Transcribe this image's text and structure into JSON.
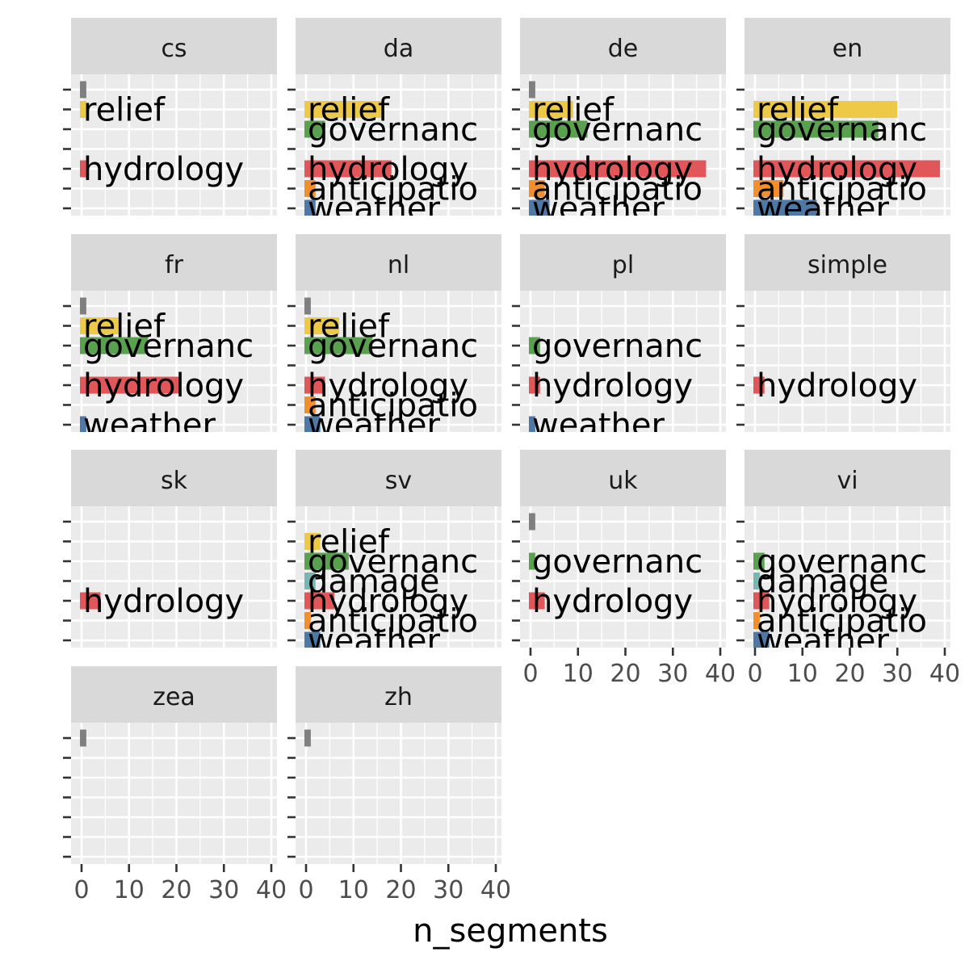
{
  "chart_data": {
    "type": "bar",
    "orientation": "horizontal",
    "facet_by": "language",
    "x_axis_title": "n_segments",
    "xlim": [
      0,
      40
    ],
    "x_ticks": [
      0,
      10,
      20,
      30,
      40
    ],
    "category_order": [
      "weather",
      "anticipatio",
      "hydrology",
      "damage",
      "governanc",
      "relief",
      ""
    ],
    "category_colors": {
      "relief": "#EDC948",
      "governanc": "#59A14F",
      "damage": "#76B7B2",
      "hydrology": "#E15759",
      "anticipatio": "#F28E2B",
      "weather": "#4E79A7",
      "": "#7F7F7F"
    },
    "panel_background": "#EBEBEB",
    "strip_background": "#D9D9D9",
    "grid_color": "#FFFFFF",
    "facets": [
      {
        "label": "cs",
        "bars": [
          {
            "category": "",
            "value": 1
          },
          {
            "category": "relief",
            "value": 1
          },
          {
            "category": "hydrology",
            "value": 1
          }
        ]
      },
      {
        "label": "da",
        "bars": [
          {
            "category": "relief",
            "value": 16
          },
          {
            "category": "governanc",
            "value": 4
          },
          {
            "category": "hydrology",
            "value": 18
          },
          {
            "category": "anticipatio",
            "value": 2
          },
          {
            "category": "weather",
            "value": 2
          }
        ]
      },
      {
        "label": "de",
        "bars": [
          {
            "category": "",
            "value": 1
          },
          {
            "category": "relief",
            "value": 9
          },
          {
            "category": "governanc",
            "value": 12
          },
          {
            "category": "hydrology",
            "value": 37
          },
          {
            "category": "anticipatio",
            "value": 3
          },
          {
            "category": "weather",
            "value": 4
          }
        ]
      },
      {
        "label": "en",
        "bars": [
          {
            "category": "relief",
            "value": 30
          },
          {
            "category": "governanc",
            "value": 26
          },
          {
            "category": "hydrology",
            "value": 39
          },
          {
            "category": "anticipatio",
            "value": 6
          },
          {
            "category": "weather",
            "value": 13
          }
        ]
      },
      {
        "label": "fr",
        "bars": [
          {
            "category": "",
            "value": 1
          },
          {
            "category": "relief",
            "value": 8
          },
          {
            "category": "governanc",
            "value": 14
          },
          {
            "category": "hydrology",
            "value": 21
          },
          {
            "category": "weather",
            "value": 1
          }
        ]
      },
      {
        "label": "nl",
        "bars": [
          {
            "category": "",
            "value": 1
          },
          {
            "category": "relief",
            "value": 7
          },
          {
            "category": "governanc",
            "value": 14
          },
          {
            "category": "hydrology",
            "value": 4
          },
          {
            "category": "anticipatio",
            "value": 2
          },
          {
            "category": "weather",
            "value": 3
          }
        ]
      },
      {
        "label": "pl",
        "bars": [
          {
            "category": "governanc",
            "value": 2
          },
          {
            "category": "hydrology",
            "value": 2
          },
          {
            "category": "weather",
            "value": 1
          }
        ]
      },
      {
        "label": "simple",
        "bars": [
          {
            "category": "hydrology",
            "value": 2
          }
        ]
      },
      {
        "label": "sk",
        "bars": [
          {
            "category": "hydrology",
            "value": 4
          }
        ]
      },
      {
        "label": "sv",
        "bars": [
          {
            "category": "relief",
            "value": 3
          },
          {
            "category": "governanc",
            "value": 9
          },
          {
            "category": "damage",
            "value": 2
          },
          {
            "category": "hydrology",
            "value": 6
          },
          {
            "category": "anticipatio",
            "value": 1
          },
          {
            "category": "weather",
            "value": 3
          }
        ]
      },
      {
        "label": "uk",
        "bars": [
          {
            "category": "",
            "value": 1
          },
          {
            "category": "governanc",
            "value": 1
          },
          {
            "category": "hydrology",
            "value": 3
          }
        ]
      },
      {
        "label": "vi",
        "bars": [
          {
            "category": "governanc",
            "value": 2
          },
          {
            "category": "damage",
            "value": 1
          },
          {
            "category": "hydrology",
            "value": 3
          },
          {
            "category": "anticipatio",
            "value": 1
          },
          {
            "category": "weather",
            "value": 3
          }
        ]
      },
      {
        "label": "zea",
        "bars": [
          {
            "category": "",
            "value": 1
          }
        ]
      },
      {
        "label": "zh",
        "bars": [
          {
            "category": "",
            "value": 1
          }
        ]
      }
    ]
  }
}
